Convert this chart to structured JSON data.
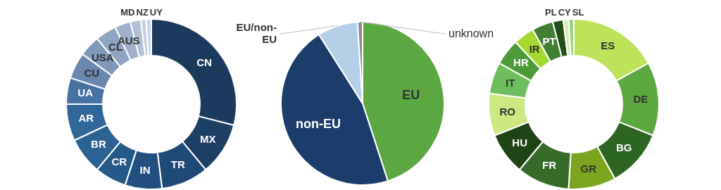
{
  "chart_data": [
    {
      "type": "donut",
      "legend": false,
      "categories": [
        "CN",
        "MX",
        "TR",
        "IN",
        "CR",
        "BR",
        "AR",
        "UA",
        "CU",
        "USA",
        "CL",
        "AUS",
        "MD",
        "NZ",
        "UY"
      ],
      "values": [
        29,
        10,
        9,
        7,
        6,
        7,
        7,
        5,
        5,
        4,
        4,
        3,
        2,
        1,
        1
      ],
      "colors": [
        "#1a3a5e",
        "#1c3f66",
        "#1e4a78",
        "#21507f",
        "#245a8a",
        "#2a6294",
        "#2f6799",
        "#4672a3",
        "#6a87b0",
        "#7e98ba",
        "#8fa5c4",
        "#9fb0cc",
        "#b3c1d8",
        "#c3cfe0",
        "#ccd6e6"
      ]
    },
    {
      "type": "pie",
      "legend": false,
      "categories": [
        "EU",
        "non-EU",
        "EU/non-EU",
        "unknown"
      ],
      "values": [
        45,
        46,
        8,
        1
      ],
      "colors": [
        "#5ba843",
        "#1a3d6b",
        "#b4cfe8",
        "#8c8c8c"
      ]
    },
    {
      "type": "donut",
      "legend": false,
      "categories": [
        "ES",
        "DE",
        "BG",
        "GR",
        "FR",
        "HU",
        "RO",
        "IT",
        "HR",
        "IR",
        "PT",
        "PL",
        "CY",
        "SL"
      ],
      "values": [
        17,
        14,
        11,
        9,
        10,
        8,
        8,
        6,
        5,
        4,
        4,
        2,
        1,
        1
      ],
      "colors": [
        "#bde35b",
        "#5aa83f",
        "#2d6622",
        "#7ca51f",
        "#356b28",
        "#1e4314",
        "#cde882",
        "#6cbf5c",
        "#4c9a38",
        "#a6d92f",
        "#3f7f31",
        "#214e19",
        "#d8ecb0",
        "#9ad38a"
      ]
    }
  ]
}
